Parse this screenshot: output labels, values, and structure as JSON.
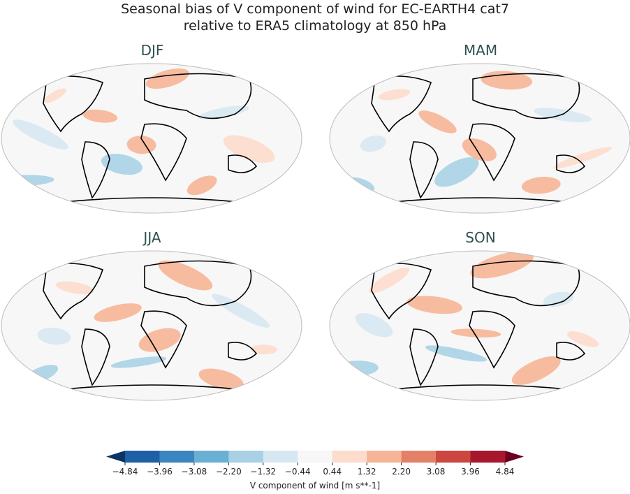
{
  "figure": {
    "title_line1": "Seasonal bias of V component of wind for EC-EARTH4 cat7",
    "title_line2": "relative to ERA5 climatology at 850 hPa"
  },
  "panels": [
    {
      "label": "DJF"
    },
    {
      "label": "MAM"
    },
    {
      "label": "JJA"
    },
    {
      "label": "SON"
    }
  ],
  "colorbar": {
    "label": "V component of wind [m s**-1]",
    "ticks": [
      "−4.84",
      "−3.96",
      "−3.08",
      "−2.20",
      "−1.32",
      "−0.44",
      "0.44",
      "1.32",
      "2.20",
      "3.08",
      "3.96",
      "4.84"
    ],
    "colors": [
      "#1f5fa6",
      "#3b85c0",
      "#6aafd4",
      "#a8d1e6",
      "#d7e7f1",
      "#f7f7f7",
      "#fcdccc",
      "#f6b596",
      "#e58068",
      "#cb4740",
      "#a7172d"
    ],
    "under_color": "#0b3465",
    "over_color": "#6b0020",
    "extend": "both"
  }
}
